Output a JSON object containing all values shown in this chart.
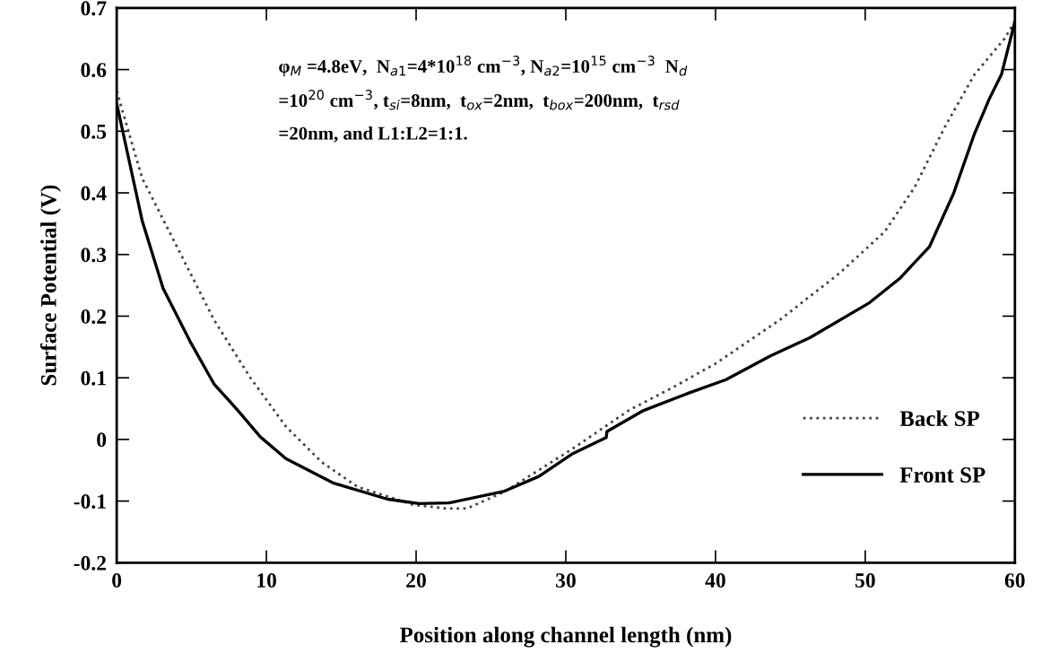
{
  "chart_data": {
    "type": "line",
    "xlabel": "Position along channel length (nm)",
    "ylabel": "Surface Potential (V)",
    "xlim": [
      0,
      60
    ],
    "ylim": [
      -0.2,
      0.7
    ],
    "xticks": [
      0,
      10,
      20,
      30,
      40,
      50,
      60
    ],
    "yticks": [
      -0.2,
      -0.1,
      0,
      0.1,
      0.2,
      0.3,
      0.4,
      0.5,
      0.6,
      0.7
    ],
    "grid": false,
    "legend": "bottom right",
    "marker": "none",
    "annotations": [
      "φ$_{M}$ =4.8eV,  N$_{a1}$=4*10$^{18}$ cm$^{−3}$, N$_{a2}$=10$^{15}$ cm$^{−3}$  N$_{d}$",
      "=10$^{20}$ cm$^{−3}$, t$_{si}$=8nm,  t$_{ox}$=2nm,  t$_{box}$=200nm,  t$_{rsd}$",
      "=20nm, and L1:L2=1:1."
    ],
    "series": [
      {
        "name": "Back SP",
        "color": "#444444",
        "line_style": "dotted",
        "x": [
          0,
          1.7,
          4.1,
          6.5,
          8.9,
          11.3,
          13.7,
          16.1,
          19.8,
          22.0,
          23.4,
          25.9,
          30.4,
          34.2,
          37.2,
          40.0,
          44.3,
          48.3,
          51.3,
          53.3,
          55.3,
          57.3,
          59.3,
          60
        ],
        "values": [
          0.565,
          0.424,
          0.309,
          0.194,
          0.101,
          0.021,
          -0.037,
          -0.077,
          -0.106,
          -0.112,
          -0.112,
          -0.085,
          -0.016,
          0.047,
          0.085,
          0.123,
          0.194,
          0.27,
          0.337,
          0.409,
          0.506,
          0.592,
          0.65,
          0.678
        ]
      },
      {
        "name": "Front SP",
        "color": "#000000",
        "line_style": "solid",
        "x": [
          0,
          1.7,
          3.1,
          4.9,
          6.5,
          8.2,
          9.6,
          11.3,
          14.5,
          18.1,
          20.2,
          22.2,
          25.9,
          28.2,
          30.4,
          32.7,
          32.75,
          35.2,
          38.3,
          40.7,
          43.7,
          46.3,
          50.3,
          52.3,
          54.3,
          55.9,
          57.3,
          58.3,
          59.1,
          60
        ],
        "values": [
          0.545,
          0.355,
          0.245,
          0.159,
          0.09,
          0.044,
          0.004,
          -0.031,
          -0.071,
          -0.097,
          -0.104,
          -0.103,
          -0.084,
          -0.06,
          -0.024,
          0.003,
          0.013,
          0.047,
          0.076,
          0.097,
          0.136,
          0.165,
          0.222,
          0.261,
          0.313,
          0.399,
          0.496,
          0.553,
          0.592,
          0.678
        ]
      }
    ]
  }
}
